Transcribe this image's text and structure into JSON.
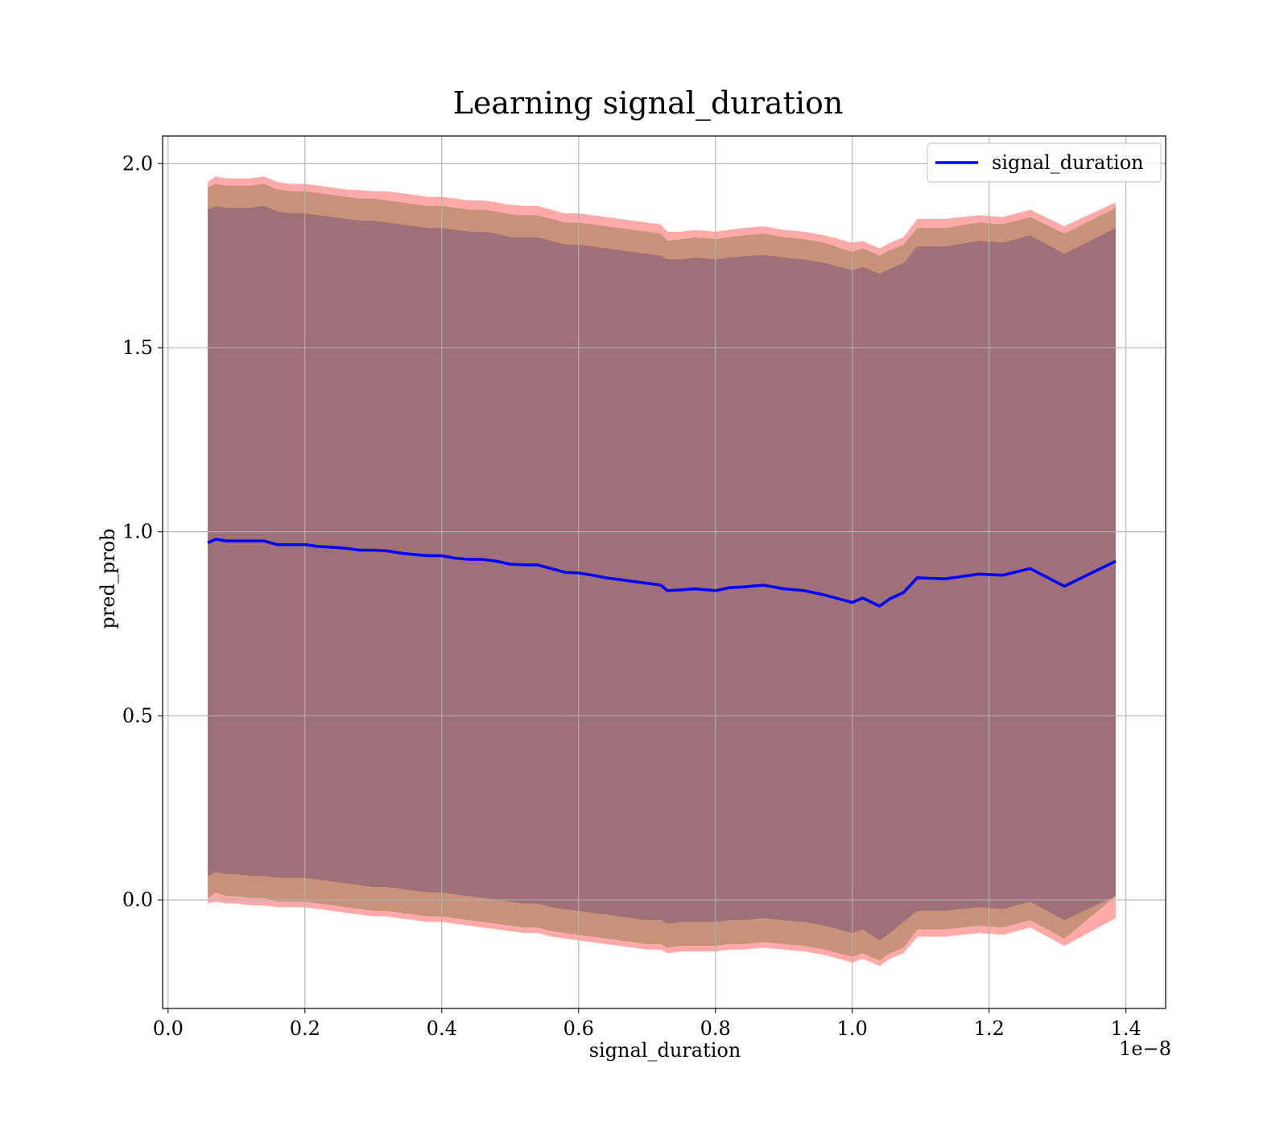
{
  "chart_data": {
    "type": "line",
    "title": "Learning signal_duration",
    "xlabel": "signal_duration",
    "ylabel": "pred_prob",
    "x_offset_text": "1e−8",
    "xlim": [
      -0.008,
      1.458
    ],
    "ylim": [
      -0.295,
      2.075
    ],
    "x_ticks": [
      0.0,
      0.2,
      0.4,
      0.6,
      0.8,
      1.0,
      1.2,
      1.4
    ],
    "x_tick_labels": [
      "0.0",
      "0.2",
      "0.4",
      "0.6",
      "0.8",
      "1.0",
      "1.2",
      "1.4"
    ],
    "y_ticks": [
      0.0,
      0.5,
      1.0,
      1.5,
      2.0
    ],
    "y_tick_labels": [
      "0.0",
      "0.5",
      "1.0",
      "1.5",
      "2.0"
    ],
    "grid": true,
    "legend_position": "top-right",
    "colors": {
      "line": "#0000ff",
      "outer_band": "#ffaaaa",
      "middle_band": "#c8927a",
      "inner_band": "#a07078",
      "grid": "#b0b0b0"
    },
    "series": [
      {
        "name": "signal_duration",
        "x": [
          0.058,
          0.07,
          0.085,
          0.1,
          0.12,
          0.14,
          0.16,
          0.18,
          0.2,
          0.22,
          0.24,
          0.26,
          0.28,
          0.3,
          0.32,
          0.34,
          0.36,
          0.38,
          0.4,
          0.42,
          0.44,
          0.46,
          0.48,
          0.5,
          0.52,
          0.54,
          0.56,
          0.58,
          0.6,
          0.62,
          0.64,
          0.66,
          0.68,
          0.7,
          0.72,
          0.73,
          0.75,
          0.77,
          0.8,
          0.82,
          0.84,
          0.87,
          0.9,
          0.93,
          0.96,
          0.98,
          1.0,
          1.015,
          1.04,
          1.055,
          1.075,
          1.095,
          1.135,
          1.185,
          1.22,
          1.26,
          1.31,
          1.385
        ],
        "y": [
          0.97,
          0.98,
          0.975,
          0.975,
          0.975,
          0.975,
          0.965,
          0.965,
          0.965,
          0.96,
          0.958,
          0.955,
          0.95,
          0.95,
          0.948,
          0.942,
          0.938,
          0.935,
          0.935,
          0.928,
          0.925,
          0.925,
          0.92,
          0.912,
          0.91,
          0.91,
          0.9,
          0.89,
          0.888,
          0.882,
          0.875,
          0.87,
          0.865,
          0.86,
          0.855,
          0.84,
          0.842,
          0.845,
          0.84,
          0.848,
          0.85,
          0.855,
          0.845,
          0.84,
          0.828,
          0.818,
          0.808,
          0.82,
          0.798,
          0.818,
          0.835,
          0.875,
          0.872,
          0.885,
          0.882,
          0.9,
          0.852,
          0.92
        ]
      }
    ],
    "bands": [
      {
        "role": "outer",
        "x": [
          0.058,
          0.07,
          0.085,
          0.1,
          0.12,
          0.14,
          0.16,
          0.18,
          0.2,
          0.22,
          0.24,
          0.26,
          0.28,
          0.3,
          0.32,
          0.34,
          0.36,
          0.38,
          0.4,
          0.42,
          0.44,
          0.46,
          0.48,
          0.5,
          0.52,
          0.54,
          0.56,
          0.58,
          0.6,
          0.62,
          0.64,
          0.66,
          0.68,
          0.7,
          0.72,
          0.73,
          0.75,
          0.77,
          0.8,
          0.82,
          0.84,
          0.87,
          0.9,
          0.93,
          0.96,
          0.98,
          1.0,
          1.015,
          1.04,
          1.055,
          1.075,
          1.095,
          1.135,
          1.185,
          1.22,
          1.26,
          1.31,
          1.385
        ],
        "upper": [
          1.95,
          1.965,
          1.96,
          1.96,
          1.96,
          1.965,
          1.95,
          1.945,
          1.945,
          1.94,
          1.935,
          1.93,
          1.928,
          1.925,
          1.925,
          1.92,
          1.915,
          1.91,
          1.91,
          1.905,
          1.9,
          1.9,
          1.895,
          1.888,
          1.885,
          1.885,
          1.875,
          1.865,
          1.865,
          1.86,
          1.855,
          1.85,
          1.845,
          1.84,
          1.835,
          1.815,
          1.815,
          1.82,
          1.815,
          1.82,
          1.825,
          1.83,
          1.82,
          1.815,
          1.805,
          1.795,
          1.785,
          1.79,
          1.77,
          1.785,
          1.8,
          1.85,
          1.85,
          1.86,
          1.855,
          1.875,
          1.83,
          1.895
        ],
        "lower": [
          -0.01,
          -0.005,
          -0.01,
          -0.01,
          -0.015,
          -0.015,
          -0.02,
          -0.02,
          -0.02,
          -0.025,
          -0.03,
          -0.035,
          -0.04,
          -0.045,
          -0.045,
          -0.05,
          -0.055,
          -0.06,
          -0.06,
          -0.065,
          -0.07,
          -0.075,
          -0.08,
          -0.085,
          -0.09,
          -0.09,
          -0.1,
          -0.105,
          -0.11,
          -0.115,
          -0.12,
          -0.125,
          -0.13,
          -0.135,
          -0.135,
          -0.145,
          -0.14,
          -0.14,
          -0.14,
          -0.135,
          -0.135,
          -0.13,
          -0.135,
          -0.14,
          -0.15,
          -0.16,
          -0.17,
          -0.16,
          -0.18,
          -0.16,
          -0.145,
          -0.1,
          -0.1,
          -0.09,
          -0.095,
          -0.075,
          -0.125,
          -0.05
        ]
      },
      {
        "role": "middle",
        "x": [
          0.058,
          0.07,
          0.085,
          0.1,
          0.12,
          0.14,
          0.16,
          0.18,
          0.2,
          0.22,
          0.24,
          0.26,
          0.28,
          0.3,
          0.32,
          0.34,
          0.36,
          0.38,
          0.4,
          0.42,
          0.44,
          0.46,
          0.48,
          0.5,
          0.52,
          0.54,
          0.56,
          0.58,
          0.6,
          0.62,
          0.64,
          0.66,
          0.68,
          0.7,
          0.72,
          0.73,
          0.75,
          0.77,
          0.8,
          0.82,
          0.84,
          0.87,
          0.9,
          0.93,
          0.96,
          0.98,
          1.0,
          1.015,
          1.04,
          1.055,
          1.075,
          1.095,
          1.135,
          1.185,
          1.22,
          1.26,
          1.31,
          1.385
        ],
        "upper": [
          1.935,
          1.945,
          1.94,
          1.94,
          1.94,
          1.945,
          1.93,
          1.925,
          1.925,
          1.92,
          1.915,
          1.91,
          1.905,
          1.905,
          1.9,
          1.895,
          1.89,
          1.885,
          1.885,
          1.88,
          1.875,
          1.875,
          1.87,
          1.862,
          1.86,
          1.86,
          1.85,
          1.84,
          1.84,
          1.835,
          1.83,
          1.825,
          1.82,
          1.815,
          1.81,
          1.79,
          1.795,
          1.8,
          1.795,
          1.8,
          1.805,
          1.81,
          1.8,
          1.795,
          1.785,
          1.772,
          1.76,
          1.77,
          1.75,
          1.765,
          1.78,
          1.825,
          1.825,
          1.84,
          1.835,
          1.855,
          1.81,
          1.88
        ],
        "lower": [
          0.005,
          0.02,
          0.01,
          0.01,
          0.005,
          0.005,
          -0.005,
          -0.005,
          -0.005,
          -0.01,
          -0.015,
          -0.02,
          -0.025,
          -0.03,
          -0.03,
          -0.035,
          -0.04,
          -0.045,
          -0.045,
          -0.05,
          -0.055,
          -0.06,
          -0.065,
          -0.07,
          -0.075,
          -0.075,
          -0.085,
          -0.09,
          -0.095,
          -0.1,
          -0.105,
          -0.11,
          -0.115,
          -0.12,
          -0.12,
          -0.13,
          -0.125,
          -0.125,
          -0.125,
          -0.12,
          -0.12,
          -0.115,
          -0.12,
          -0.125,
          -0.135,
          -0.145,
          -0.155,
          -0.145,
          -0.165,
          -0.145,
          -0.13,
          -0.08,
          -0.08,
          -0.07,
          -0.075,
          -0.055,
          -0.105,
          0.01
        ]
      },
      {
        "role": "inner",
        "x": [
          0.058,
          0.07,
          0.085,
          0.1,
          0.12,
          0.14,
          0.16,
          0.18,
          0.2,
          0.22,
          0.24,
          0.26,
          0.28,
          0.3,
          0.32,
          0.34,
          0.36,
          0.38,
          0.4,
          0.42,
          0.44,
          0.46,
          0.48,
          0.5,
          0.52,
          0.54,
          0.56,
          0.58,
          0.6,
          0.62,
          0.64,
          0.66,
          0.68,
          0.7,
          0.72,
          0.73,
          0.75,
          0.77,
          0.8,
          0.82,
          0.84,
          0.87,
          0.9,
          0.93,
          0.96,
          0.98,
          1.0,
          1.015,
          1.04,
          1.055,
          1.075,
          1.095,
          1.135,
          1.185,
          1.22,
          1.26,
          1.31,
          1.385
        ],
        "upper": [
          1.875,
          1.885,
          1.88,
          1.88,
          1.88,
          1.885,
          1.87,
          1.865,
          1.865,
          1.86,
          1.855,
          1.85,
          1.845,
          1.845,
          1.84,
          1.835,
          1.83,
          1.825,
          1.825,
          1.82,
          1.815,
          1.815,
          1.81,
          1.8,
          1.8,
          1.8,
          1.79,
          1.78,
          1.78,
          1.775,
          1.77,
          1.765,
          1.76,
          1.755,
          1.75,
          1.74,
          1.74,
          1.745,
          1.74,
          1.745,
          1.748,
          1.752,
          1.745,
          1.74,
          1.73,
          1.72,
          1.71,
          1.72,
          1.7,
          1.715,
          1.73,
          1.775,
          1.775,
          1.79,
          1.785,
          1.805,
          1.755,
          1.825
        ],
        "lower": [
          0.065,
          0.075,
          0.07,
          0.07,
          0.065,
          0.065,
          0.06,
          0.06,
          0.06,
          0.055,
          0.05,
          0.045,
          0.04,
          0.035,
          0.035,
          0.03,
          0.025,
          0.02,
          0.02,
          0.015,
          0.01,
          0.005,
          0.0,
          -0.005,
          -0.01,
          -0.01,
          -0.02,
          -0.025,
          -0.03,
          -0.035,
          -0.04,
          -0.045,
          -0.05,
          -0.055,
          -0.055,
          -0.065,
          -0.06,
          -0.06,
          -0.06,
          -0.055,
          -0.055,
          -0.05,
          -0.055,
          -0.06,
          -0.07,
          -0.08,
          -0.09,
          -0.08,
          -0.11,
          -0.09,
          -0.06,
          -0.03,
          -0.03,
          -0.02,
          -0.025,
          -0.005,
          -0.055,
          0.01
        ]
      }
    ]
  }
}
